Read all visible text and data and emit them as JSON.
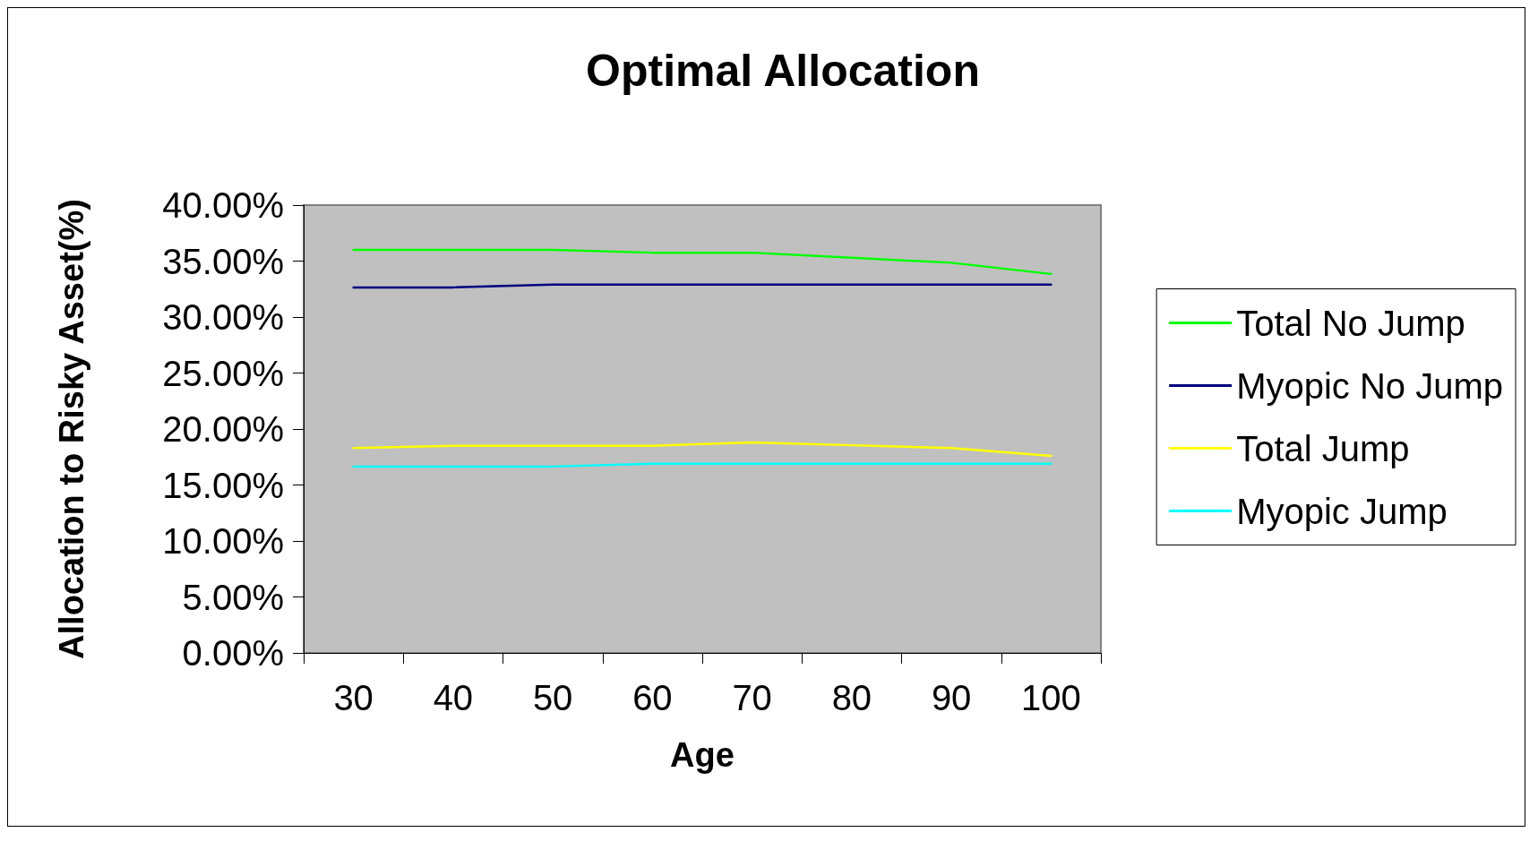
{
  "chart_data": {
    "type": "line",
    "title": "Optimal Allocation",
    "xlabel": "Age",
    "ylabel": "Allocation to Risky Asset(%)",
    "categories": [
      "30",
      "40",
      "50",
      "60",
      "70",
      "80",
      "90",
      "100"
    ],
    "series": [
      {
        "name": "Total No Jump",
        "color": "#00ff00",
        "values": [
          36.0,
          36.0,
          36.0,
          35.75,
          35.75,
          35.3,
          34.85,
          33.85
        ]
      },
      {
        "name": "Myopic No Jump",
        "color": "#000080",
        "values": [
          32.65,
          32.65,
          32.9,
          32.9,
          32.9,
          32.9,
          32.9,
          32.9
        ]
      },
      {
        "name": "Total Jump",
        "color": "#ffff00",
        "values": [
          18.3,
          18.5,
          18.5,
          18.5,
          18.8,
          18.55,
          18.3,
          17.6
        ]
      },
      {
        "name": "Myopic Jump",
        "color": "#00ffff",
        "values": [
          16.65,
          16.65,
          16.65,
          16.9,
          16.9,
          16.9,
          16.9,
          16.9
        ]
      }
    ],
    "ylim": [
      0,
      40
    ],
    "yticks": [
      {
        "value": 0,
        "label": "0.00%"
      },
      {
        "value": 5,
        "label": "5.00%"
      },
      {
        "value": 10,
        "label": "10.00%"
      },
      {
        "value": 15,
        "label": "15.00%"
      },
      {
        "value": 20,
        "label": "20.00%"
      },
      {
        "value": 25,
        "label": "25.00%"
      },
      {
        "value": 30,
        "label": "30.00%"
      },
      {
        "value": 35,
        "label": "35.00%"
      },
      {
        "value": 40,
        "label": "40.00%"
      }
    ],
    "grid": false,
    "legend": "right",
    "marker": "none",
    "line_style": "solid"
  }
}
